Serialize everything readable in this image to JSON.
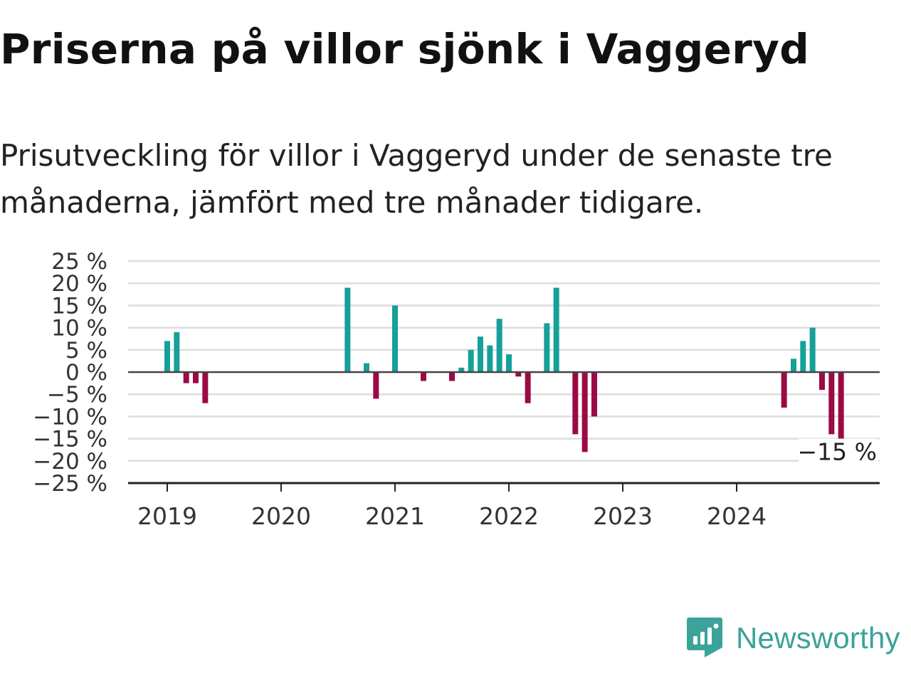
{
  "title": "Priserna på villor sjönk i Vaggeryd",
  "subtitle": "Prisutveckling för villor i Vaggeryd under de senaste tre månaderna, jämfört med tre månader tidigare.",
  "brand": {
    "name": "Newsworthy",
    "icon": "newsworthy-logo-icon",
    "color": "#3aa39a"
  },
  "colors": {
    "positive": "#15a09a",
    "negative": "#9b0a45",
    "grid": "#dddddd",
    "zero_line": "#444444",
    "axis": "#222222"
  },
  "chart_data": {
    "type": "bar",
    "title": "Priserna på villor sjönk i Vaggeryd",
    "xlabel": "",
    "ylabel": "",
    "ylim": [
      -25,
      25
    ],
    "y_ticks": [
      25,
      20,
      15,
      10,
      5,
      0,
      -5,
      -10,
      -15,
      -20,
      -25
    ],
    "y_tick_labels": [
      "25 %",
      "20 %",
      "15 %",
      "10 %",
      "5 %",
      "0 %",
      "−5 %",
      "−10 %",
      "−15 %",
      "−20 %",
      "−25 %"
    ],
    "x_tick_labels": [
      "2019",
      "2020",
      "2021",
      "2022",
      "2023",
      "2024"
    ],
    "grid": true,
    "unit": "%",
    "x": [
      "2019-01",
      "2019-02",
      "2019-03",
      "2019-04",
      "2019-05",
      "2020-08",
      "2020-10",
      "2020-11",
      "2021-01",
      "2021-04",
      "2021-07",
      "2021-08",
      "2021-09",
      "2021-10",
      "2021-11",
      "2021-12",
      "2022-01",
      "2022-02",
      "2022-03",
      "2022-05",
      "2022-06",
      "2022-08",
      "2022-09",
      "2022-10",
      "2024-06",
      "2024-07",
      "2024-08",
      "2024-09",
      "2024-10",
      "2024-11",
      "2024-12"
    ],
    "values": [
      7,
      9,
      -2.5,
      -2.5,
      -7,
      19,
      2,
      -6,
      15,
      -2,
      -2,
      1,
      5,
      8,
      6,
      12,
      4,
      -1,
      -7,
      11,
      19,
      -14,
      -18,
      -10,
      -8,
      3,
      7,
      10,
      -4,
      -14,
      -15
    ],
    "annotation": {
      "label": "−15 %",
      "x": "2024-12",
      "value": -15
    }
  }
}
